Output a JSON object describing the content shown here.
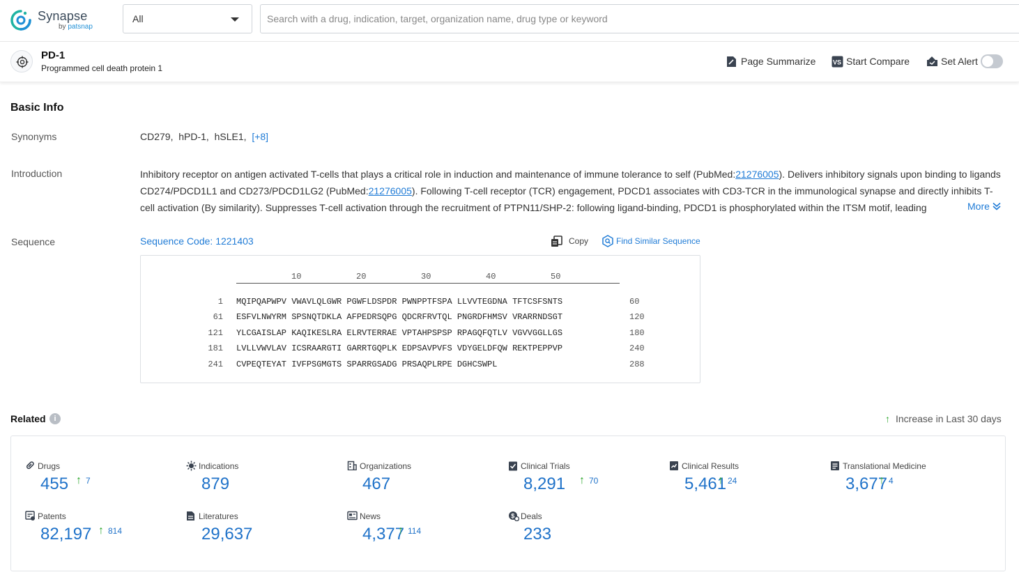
{
  "brand": {
    "name": "Synapse",
    "by": "by",
    "company": "patsnap",
    "colors": {
      "accent": "#1f7bd6",
      "increase": "#2aa52a"
    }
  },
  "search": {
    "scope": "All",
    "placeholder": "Search with a drug, indication, target, organization name, drug type or keyword",
    "value": ""
  },
  "entity": {
    "icon": "target-icon",
    "title": "PD-1",
    "subtitle": "Programmed cell death protein 1",
    "actions": {
      "summarize": "Page Summarize",
      "compare": "Start Compare",
      "alert": "Set Alert",
      "alert_on": false
    }
  },
  "basic_info": {
    "heading": "Basic Info",
    "synonyms_label": "Synonyms",
    "synonyms": [
      "CD279,",
      "hPD-1,",
      "hSLE1,"
    ],
    "synonyms_more": "[+8]",
    "introduction_label": "Introduction",
    "introduction": {
      "p1": "Inhibitory receptor on antigen activated T-cells that plays a critical role in induction and maintenance of immune tolerance to self (PubMed:",
      "link1": "21276005",
      "p2": "). Delivers inhibitory signals upon binding to ligands CD274/PDCD1L1 and CD273/PDCD1LG2 (PubMed:",
      "link2": "21276005",
      "p3": "). Following T-cell receptor (TCR) engagement, PDCD1 associates with CD3-TCR in the immunological synapse and directly inhibits T-cell activation (By similarity). Suppresses T-cell activation through the recruitment of PTPN11/SHP-2: following ligand-binding, PDCD1 is phosphorylated within the ITSM motif, leading",
      "more": "More"
    },
    "sequence_label": "Sequence",
    "sequence_code": "Sequence Code: 1221403",
    "copy": "Copy",
    "find_similar": "Find Similar Sequence",
    "ruler": [
      "10",
      "20",
      "30",
      "40",
      "50"
    ],
    "sequence_rows": [
      {
        "start": "1",
        "residues": "MQIPQAPWPV VWAVLQLGWR PGWFLDSPDR PWNPPTFSPA LLVVTEGDNA TFTCSFSNTS",
        "end": "60"
      },
      {
        "start": "61",
        "residues": "ESFVLNWYRM SPSNQTDKLA AFPEDRSQPG QDCRFRVTQL PNGRDFHMSV VRARRNDSGT",
        "end": "120"
      },
      {
        "start": "121",
        "residues": "YLCGAISLAP KAQIKESLRA ELRVTERRAE VPTAHPSPSP RPAGQFQTLV VGVVGGLLGS",
        "end": "180"
      },
      {
        "start": "181",
        "residues": "LVLLVWVLAV ICSRAARGTI GARRTGQPLK EDPSAVPVFS VDYGELDFQW REKTPEPPVP",
        "end": "240"
      },
      {
        "start": "241",
        "residues": "CVPEQTEYAT IVFPSGMGTS SPARRGSADG PRSAQPLRPE DGHCSWPL",
        "end": "288"
      }
    ]
  },
  "related": {
    "heading": "Related",
    "info": "i",
    "legend": "Increase in Last 30 days",
    "stats": [
      {
        "label": "Drugs",
        "icon": "pill-icon",
        "value": "455",
        "increase": "7"
      },
      {
        "label": "Indications",
        "icon": "virus-icon",
        "value": "879",
        "increase": ""
      },
      {
        "label": "Organizations",
        "icon": "building-icon",
        "value": "467",
        "increase": ""
      },
      {
        "label": "Clinical Trials",
        "icon": "clipboard-icon",
        "value": "8,291",
        "increase": "70"
      },
      {
        "label": "Clinical Results",
        "icon": "results-icon",
        "value": "5,461",
        "increase": "24"
      },
      {
        "label": "Translational Medicine",
        "icon": "document-icon",
        "value": "3,677",
        "increase": "4"
      },
      {
        "label": "Patents",
        "icon": "patent-icon",
        "value": "82,197",
        "increase": "814"
      },
      {
        "label": "Literatures",
        "icon": "literature-icon",
        "value": "29,637",
        "increase": ""
      },
      {
        "label": "News",
        "icon": "news-icon",
        "value": "4,377",
        "increase": "114"
      },
      {
        "label": "Deals",
        "icon": "deals-icon",
        "value": "233",
        "increase": ""
      }
    ]
  }
}
